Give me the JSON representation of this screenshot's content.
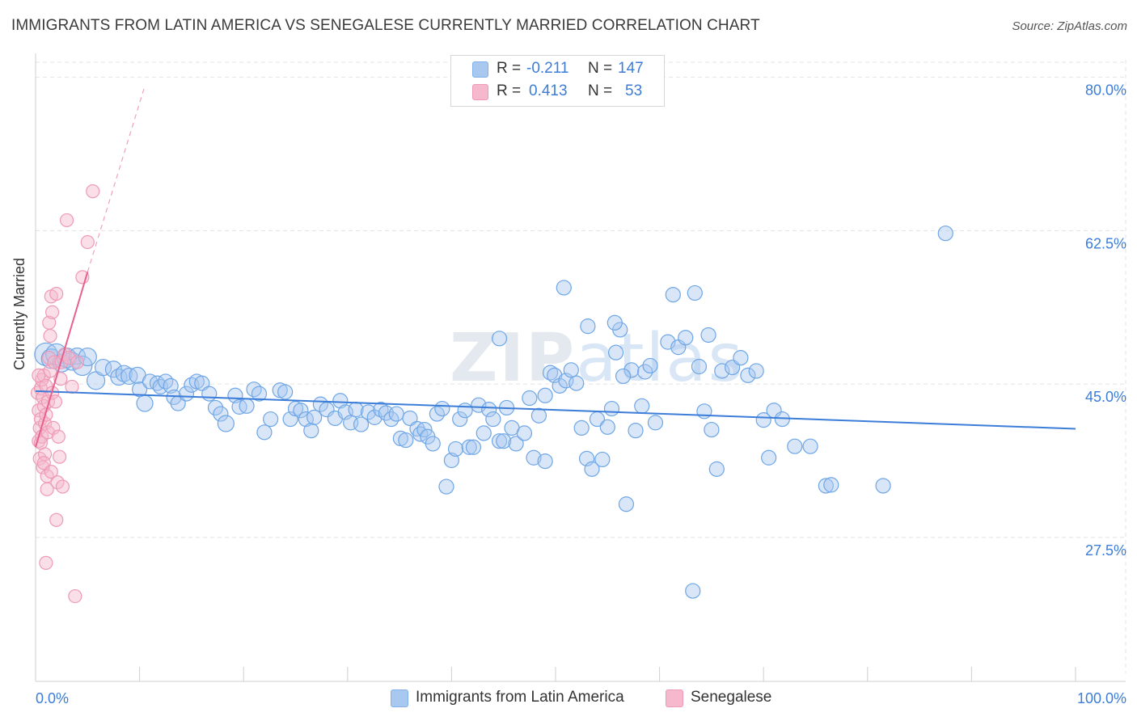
{
  "title": "IMMIGRANTS FROM LATIN AMERICA VS SENEGALESE CURRENTLY MARRIED CORRELATION CHART",
  "source": "Source: ZipAtlas.com",
  "watermark": {
    "zip": "ZIP",
    "atlas": "atlas"
  },
  "legend_top": {
    "rows": [
      {
        "r_label": "R =",
        "r_value": "-0.211",
        "n_label": "N =",
        "n_value": "147",
        "color": "#a8c8f0"
      },
      {
        "r_label": "R =",
        "r_value": "0.413",
        "n_label": "N =",
        "n_value": "53",
        "color": "#f5b8cc"
      }
    ]
  },
  "legend_bottom": {
    "items": [
      {
        "label": "Immigrants from Latin America",
        "color": "#a8c8f0"
      },
      {
        "label": "Senegalese",
        "color": "#f5b8cc"
      }
    ]
  },
  "chart_data": {
    "type": "scatter",
    "title": "IMMIGRANTS FROM LATIN AMERICA VS SENEGALESE CURRENTLY MARRIED CORRELATION CHART",
    "xlabel": "",
    "ylabel": "Currently Married",
    "xlim": [
      0,
      100
    ],
    "ylim": [
      12.0,
      82.0
    ],
    "x_tick_labels": [
      "0.0%",
      "100.0%"
    ],
    "y_ticks": [
      27.5,
      45.0,
      62.5,
      80.0
    ],
    "y_tick_labels": [
      "27.5%",
      "45.0%",
      "62.5%",
      "80.0%"
    ],
    "grid": true,
    "legend_position": "top-center",
    "colors": {
      "blue": "#3b7dd8",
      "blue_fill": "#a8c8f0",
      "pink": "#e8618c",
      "pink_fill": "#f5b8cc",
      "grid": "#e3e3e3",
      "axis_label": "#3b7dd8"
    },
    "series": [
      {
        "name": "Immigrants from Latin America",
        "trend": {
          "x": [
            0,
            100
          ],
          "y": [
            44.2,
            39.9
          ]
        },
        "points": [
          [
            1.0,
            48.4,
            14
          ],
          [
            1.5,
            47.9,
            12
          ],
          [
            2.0,
            48.4,
            13
          ],
          [
            2.5,
            47.4,
            11
          ],
          [
            3.0,
            48.0,
            12
          ],
          [
            3.5,
            47.6,
            11
          ],
          [
            4.0,
            48.2,
            10
          ],
          [
            4.5,
            47.1,
            12
          ],
          [
            5.0,
            48.1,
            11
          ],
          [
            5.8,
            45.4,
            11
          ],
          [
            6.5,
            46.9,
            10
          ],
          [
            7.5,
            46.7,
            10
          ],
          [
            8.0,
            45.8,
            10
          ],
          [
            8.5,
            46.2,
            10
          ],
          [
            9.0,
            45.9,
            10
          ],
          [
            9.8,
            46.0,
            10
          ],
          [
            10.0,
            44.4,
            9
          ],
          [
            10.5,
            42.8,
            10
          ],
          [
            11.0,
            45.3,
            9
          ],
          [
            11.7,
            45.1,
            9
          ],
          [
            12.0,
            44.7,
            9
          ],
          [
            12.5,
            45.3,
            9
          ],
          [
            13.0,
            44.8,
            9
          ],
          [
            13.3,
            43.5,
            9
          ],
          [
            13.7,
            42.8,
            9
          ],
          [
            14.5,
            43.9,
            9
          ],
          [
            15.0,
            44.9,
            9
          ],
          [
            15.5,
            45.3,
            9
          ],
          [
            16.0,
            45.1,
            9
          ],
          [
            16.7,
            43.9,
            9
          ],
          [
            17.3,
            42.3,
            9
          ],
          [
            17.8,
            41.6,
            9
          ],
          [
            18.3,
            40.5,
            10
          ],
          [
            19.2,
            43.7,
            9
          ],
          [
            19.6,
            42.4,
            9
          ],
          [
            20.3,
            42.5,
            9
          ],
          [
            21.0,
            44.4,
            9
          ],
          [
            21.5,
            43.9,
            9
          ],
          [
            22.0,
            39.5,
            9
          ],
          [
            22.6,
            41.0,
            9
          ],
          [
            23.5,
            44.3,
            9
          ],
          [
            24.0,
            44.1,
            9
          ],
          [
            24.5,
            41.0,
            9
          ],
          [
            25.0,
            42.2,
            9
          ],
          [
            25.5,
            42.0,
            9
          ],
          [
            26.0,
            41.0,
            9
          ],
          [
            26.5,
            39.7,
            9
          ],
          [
            26.8,
            41.2,
            9
          ],
          [
            27.4,
            42.7,
            9
          ],
          [
            28.0,
            42.1,
            9
          ],
          [
            28.8,
            41.1,
            9
          ],
          [
            29.3,
            43.1,
            9
          ],
          [
            29.8,
            41.8,
            9
          ],
          [
            30.3,
            40.6,
            9
          ],
          [
            30.8,
            42.1,
            9
          ],
          [
            31.3,
            40.4,
            9
          ],
          [
            32.0,
            41.8,
            9
          ],
          [
            32.6,
            41.2,
            9
          ],
          [
            33.2,
            42.1,
            9
          ],
          [
            33.7,
            41.7,
            9
          ],
          [
            34.2,
            41.0,
            9
          ],
          [
            34.7,
            41.6,
            9
          ],
          [
            35.1,
            38.8,
            9
          ],
          [
            35.6,
            38.6,
            9
          ],
          [
            36.0,
            41.1,
            9
          ],
          [
            36.7,
            39.9,
            9
          ],
          [
            37.0,
            39.3,
            9
          ],
          [
            37.4,
            39.8,
            9
          ],
          [
            37.7,
            39.0,
            9
          ],
          [
            38.2,
            38.2,
            9
          ],
          [
            38.6,
            41.6,
            9
          ],
          [
            39.1,
            42.2,
            9
          ],
          [
            39.5,
            33.3,
            9
          ],
          [
            40.0,
            36.3,
            9
          ],
          [
            40.4,
            37.6,
            9
          ],
          [
            40.8,
            41.0,
            9
          ],
          [
            41.3,
            42.0,
            9
          ],
          [
            41.7,
            37.8,
            9
          ],
          [
            42.1,
            37.8,
            9
          ],
          [
            42.6,
            42.6,
            9
          ],
          [
            43.1,
            39.4,
            9
          ],
          [
            43.6,
            42.1,
            9
          ],
          [
            44.0,
            41.0,
            9
          ],
          [
            44.6,
            38.5,
            9
          ],
          [
            45.0,
            38.5,
            9
          ],
          [
            45.3,
            42.3,
            9
          ],
          [
            45.8,
            40.0,
            9
          ],
          [
            46.2,
            38.2,
            9
          ],
          [
            47.0,
            39.4,
            9
          ],
          [
            47.5,
            43.4,
            9
          ],
          [
            47.9,
            36.6,
            9
          ],
          [
            48.4,
            41.4,
            9
          ],
          [
            49.0,
            43.7,
            9
          ],
          [
            49.5,
            46.3,
            9
          ],
          [
            49.9,
            46.0,
            9
          ],
          [
            50.4,
            44.8,
            9
          ],
          [
            51.0,
            45.4,
            9
          ],
          [
            51.5,
            46.6,
            9
          ],
          [
            52.0,
            45.1,
            9
          ],
          [
            52.5,
            40.0,
            9
          ],
          [
            53.0,
            36.5,
            9
          ],
          [
            53.5,
            35.3,
            9
          ],
          [
            54.0,
            41.0,
            9
          ],
          [
            54.5,
            36.4,
            9
          ],
          [
            55.0,
            40.1,
            9
          ],
          [
            55.4,
            42.2,
            9
          ],
          [
            55.8,
            48.6,
            9
          ],
          [
            56.2,
            51.2,
            9
          ],
          [
            56.8,
            31.3,
            9
          ],
          [
            57.3,
            46.6,
            9
          ],
          [
            57.7,
            39.7,
            9
          ],
          [
            58.3,
            42.5,
            9
          ],
          [
            58.6,
            46.4,
            9
          ],
          [
            59.1,
            47.1,
            9
          ],
          [
            59.6,
            40.6,
            9
          ],
          [
            60.8,
            49.8,
            9
          ],
          [
            61.3,
            55.2,
            9
          ],
          [
            61.8,
            49.2,
            9
          ],
          [
            62.5,
            50.3,
            9
          ],
          [
            63.2,
            21.4,
            9
          ],
          [
            63.8,
            47.0,
            9
          ],
          [
            64.3,
            41.9,
            9
          ],
          [
            65.0,
            39.8,
            9
          ],
          [
            65.5,
            35.3,
            9
          ],
          [
            66.0,
            46.5,
            9
          ],
          [
            67.0,
            46.9,
            9
          ],
          [
            67.8,
            48.0,
            9
          ],
          [
            68.5,
            46.0,
            9
          ],
          [
            69.3,
            46.5,
            9
          ],
          [
            70.0,
            40.9,
            9
          ],
          [
            70.5,
            36.6,
            9
          ],
          [
            71.0,
            42.0,
            9
          ],
          [
            71.8,
            41.0,
            9
          ],
          [
            73.0,
            37.9,
            9
          ],
          [
            74.5,
            37.9,
            9
          ],
          [
            76.0,
            33.4,
            9
          ],
          [
            76.5,
            33.5,
            9
          ],
          [
            81.5,
            33.4,
            9
          ],
          [
            87.5,
            62.2,
            9
          ],
          [
            44.6,
            50.2,
            9
          ],
          [
            50.8,
            56.0,
            9
          ],
          [
            53.1,
            51.6,
            9
          ],
          [
            63.4,
            55.4,
            9
          ],
          [
            64.7,
            50.6,
            9
          ],
          [
            55.7,
            52.0,
            9
          ],
          [
            56.5,
            45.9,
            9
          ],
          [
            49.0,
            36.2,
            9
          ]
        ]
      },
      {
        "name": "Senegalese",
        "trend": {
          "x": [
            0.0,
            5.0
          ],
          "y": [
            37.8,
            57.8
          ]
        },
        "trend_dashed": {
          "x": [
            5.0,
            10.5
          ],
          "y": [
            57.8,
            79.0
          ]
        },
        "points": [
          [
            0.2,
            44.0,
            8
          ],
          [
            0.3,
            42.0,
            8
          ],
          [
            0.3,
            38.5,
            8
          ],
          [
            0.4,
            40.0,
            8
          ],
          [
            0.4,
            36.5,
            8
          ],
          [
            0.5,
            44.5,
            8
          ],
          [
            0.5,
            41.0,
            8
          ],
          [
            0.6,
            39.0,
            8
          ],
          [
            0.6,
            45.5,
            8
          ],
          [
            0.7,
            43.5,
            8
          ],
          [
            0.7,
            35.5,
            8
          ],
          [
            0.8,
            46.0,
            8
          ],
          [
            0.8,
            42.5,
            8
          ],
          [
            0.9,
            40.5,
            8
          ],
          [
            0.9,
            37.0,
            8
          ],
          [
            1.0,
            44.8,
            8
          ],
          [
            1.0,
            41.5,
            8
          ],
          [
            1.1,
            33.0,
            8
          ],
          [
            1.1,
            34.5,
            8
          ],
          [
            1.2,
            43.0,
            8
          ],
          [
            1.2,
            39.5,
            8
          ],
          [
            1.3,
            48.0,
            8
          ],
          [
            1.3,
            52.0,
            8
          ],
          [
            1.4,
            50.5,
            8
          ],
          [
            1.4,
            46.5,
            8
          ],
          [
            1.5,
            55.0,
            8
          ],
          [
            1.6,
            53.2,
            8
          ],
          [
            1.6,
            44.0,
            8
          ],
          [
            1.7,
            40.0,
            8
          ],
          [
            1.8,
            47.5,
            8
          ],
          [
            1.9,
            43.0,
            8
          ],
          [
            2.0,
            55.3,
            8
          ],
          [
            2.1,
            33.8,
            8
          ],
          [
            2.2,
            39.0,
            8
          ],
          [
            2.3,
            36.7,
            8
          ],
          [
            2.4,
            45.6,
            8
          ],
          [
            2.5,
            47.5,
            8
          ],
          [
            2.6,
            33.3,
            8
          ],
          [
            2.8,
            48.4,
            8
          ],
          [
            3.0,
            63.7,
            8
          ],
          [
            3.2,
            48.0,
            8
          ],
          [
            3.5,
            44.7,
            8
          ],
          [
            3.8,
            20.8,
            8
          ],
          [
            4.0,
            47.5,
            8
          ],
          [
            4.5,
            57.2,
            8
          ],
          [
            5.0,
            61.2,
            8
          ],
          [
            5.5,
            67.0,
            8
          ],
          [
            0.5,
            38.3,
            8
          ],
          [
            1.0,
            24.6,
            8
          ],
          [
            2.0,
            29.5,
            8
          ],
          [
            0.8,
            36.0,
            8
          ],
          [
            1.5,
            35.0,
            8
          ],
          [
            0.3,
            46.0,
            8
          ]
        ]
      }
    ]
  }
}
